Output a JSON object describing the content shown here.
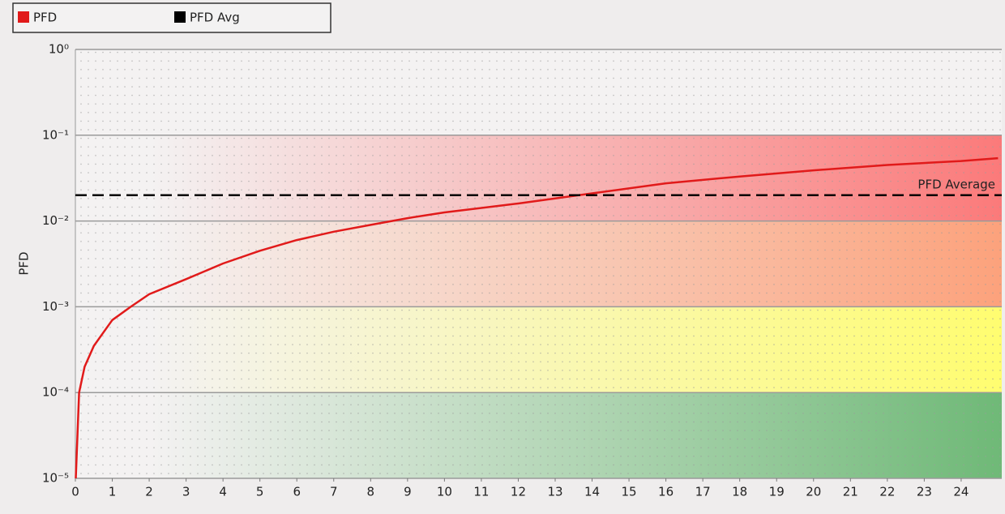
{
  "chart_data": {
    "type": "line",
    "y_label": "PFD",
    "log_y": true,
    "xlim": [
      0,
      25.1
    ],
    "ylim": [
      1e-05,
      1
    ],
    "xticks": [
      0,
      1,
      2,
      3,
      4,
      5,
      6,
      7,
      8,
      9,
      10,
      11,
      12,
      13,
      14,
      15,
      16,
      17,
      18,
      19,
      20,
      21,
      22,
      23,
      24
    ],
    "yticks": [
      {
        "value": 1,
        "label": "10⁰"
      },
      {
        "value": 0.1,
        "label": "10⁻¹"
      },
      {
        "value": 0.01,
        "label": "10⁻²"
      },
      {
        "value": 0.001,
        "label": "10⁻³"
      },
      {
        "value": 0.0001,
        "label": "10⁻⁴"
      },
      {
        "value": 1e-05,
        "label": "10⁻⁵"
      }
    ],
    "grid": true,
    "bands": [
      {
        "from": 0.01,
        "to": 0.1,
        "color": "#fb7a7a"
      },
      {
        "from": 0.001,
        "to": 0.01,
        "color": "#fca27c"
      },
      {
        "from": 0.0001,
        "to": 0.001,
        "color": "#fffd70"
      },
      {
        "from": 1e-05,
        "to": 0.0001,
        "color": "#6fb977"
      }
    ],
    "series": [
      {
        "name": "PFD",
        "color": "#e11a1a",
        "x": [
          0.01,
          0.1,
          0.25,
          0.5,
          1,
          1.5,
          2,
          3,
          4,
          5,
          6,
          7,
          8,
          9,
          10,
          12,
          14,
          16,
          18,
          20,
          22,
          24,
          25
        ],
        "values": [
          1e-05,
          0.0001,
          0.0002,
          0.00035,
          0.0007,
          0.001,
          0.0014,
          0.0021,
          0.0032,
          0.0045,
          0.006,
          0.0075,
          0.009,
          0.0108,
          0.0126,
          0.016,
          0.021,
          0.0275,
          0.033,
          0.039,
          0.045,
          0.05,
          0.054
        ]
      }
    ],
    "reference_lines": [
      {
        "name": "PFD Avg",
        "label": "PFD Average",
        "value": 0.02,
        "color": "#000000"
      }
    ]
  }
}
